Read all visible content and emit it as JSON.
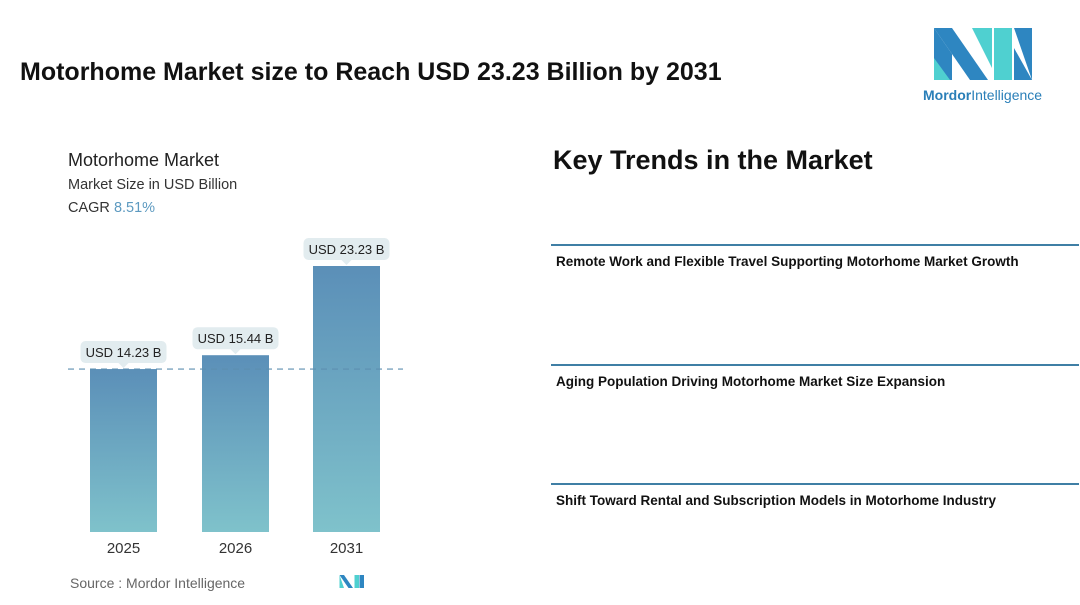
{
  "header": {
    "title": "Motorhome Market size to Reach USD 23.23 Billion by 2031",
    "logo_text_bold": "Mordor",
    "logo_text": "Intelligence"
  },
  "chart_header": {
    "title": "Motorhome Market",
    "subtitle": "Market Size in USD Billion",
    "cagr_label": "CAGR",
    "cagr_value": "8.51%"
  },
  "chart_data": {
    "type": "bar",
    "title": "Motorhome Market",
    "ylabel": "Market Size in USD Billion",
    "categories": [
      "2025",
      "2026",
      "2031"
    ],
    "values": [
      14.23,
      15.44,
      23.23
    ],
    "data_labels": [
      "USD 14.23 B",
      "USD 15.44 B",
      "USD 23.23 B"
    ],
    "ylim": [
      0,
      23.23
    ],
    "reference_line": 14.23,
    "colors": {
      "top": "#5b8fb8",
      "bottom": "#7fc2cb"
    }
  },
  "source": "Source :  Mordor Intelligence",
  "trends": {
    "heading": "Key Trends in the Market",
    "items": [
      "Remote Work and Flexible Travel Supporting Motorhome Market Growth",
      "Aging Population Driving Motorhome Market Size Expansion",
      "Shift Toward Rental and Subscription Models in Motorhome Industry"
    ]
  }
}
